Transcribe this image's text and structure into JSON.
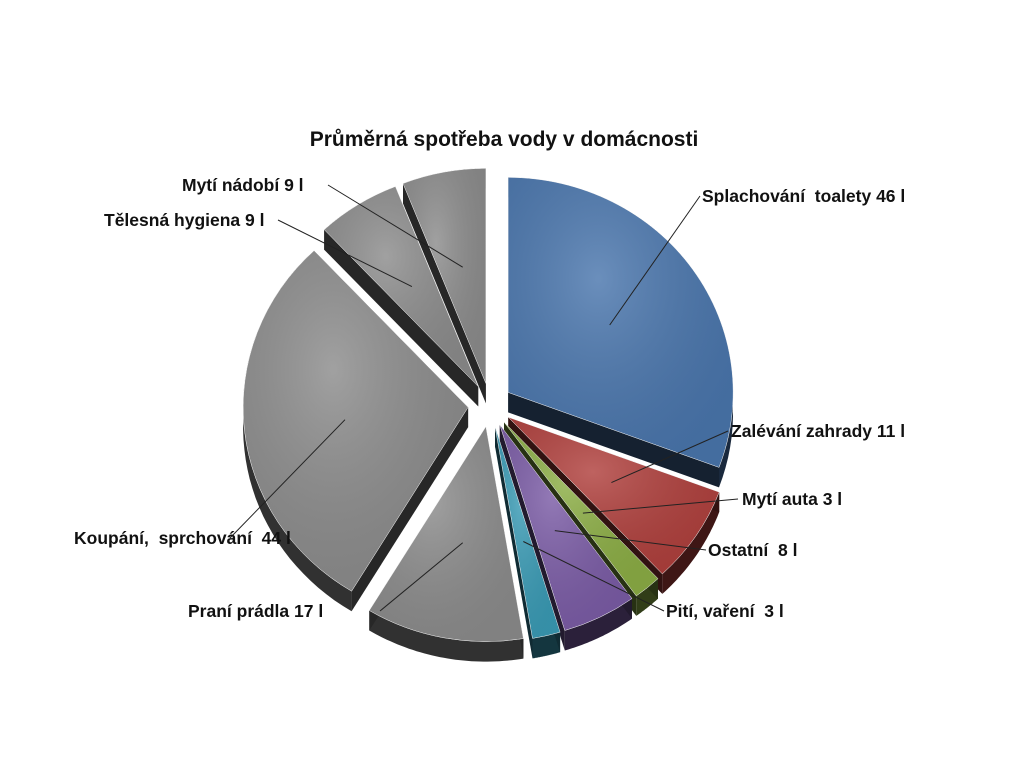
{
  "chart_data": {
    "type": "pie",
    "title": "Průměrná spotřeba vody v domácnosti",
    "unit": "l",
    "slices": [
      {
        "name": "Splachování toalety",
        "value": 46,
        "label": "Splachování  toalety 46 l",
        "color": "#4a76ad"
      },
      {
        "name": "Zalévání zahrady",
        "value": 11,
        "label": "Zalévání zahrady 11 l",
        "color": "#b0403d"
      },
      {
        "name": "Mytí auta",
        "value": 3,
        "label": "Mytí auta 3 l",
        "color": "#8cae45"
      },
      {
        "name": "Ostatní",
        "value": 8,
        "label": "Ostatní  8 l",
        "color": "#7b5ca6"
      },
      {
        "name": "Pití, vaření",
        "value": 3,
        "label": "Pití, vaření  3 l",
        "color": "#3a9bb5"
      },
      {
        "name": "Praní prádla",
        "value": 17,
        "label": "Praní prádla 17 l",
        "color": "#8c8c8c"
      },
      {
        "name": "Koupání, sprchování",
        "value": 44,
        "label": "Koupání,  sprchování  44 l",
        "color": "#8c8c8c"
      },
      {
        "name": "Tělesná hygiena",
        "value": 9,
        "label": "Tělesná hygiena 9 l",
        "color": "#8c8c8c"
      },
      {
        "name": "Mytí nádobí",
        "value": 9,
        "label": "Mytí nádobí 9 l",
        "color": "#8c8c8c"
      }
    ],
    "legend": "none",
    "style": "exploded 3D pie with leader-line labels"
  }
}
